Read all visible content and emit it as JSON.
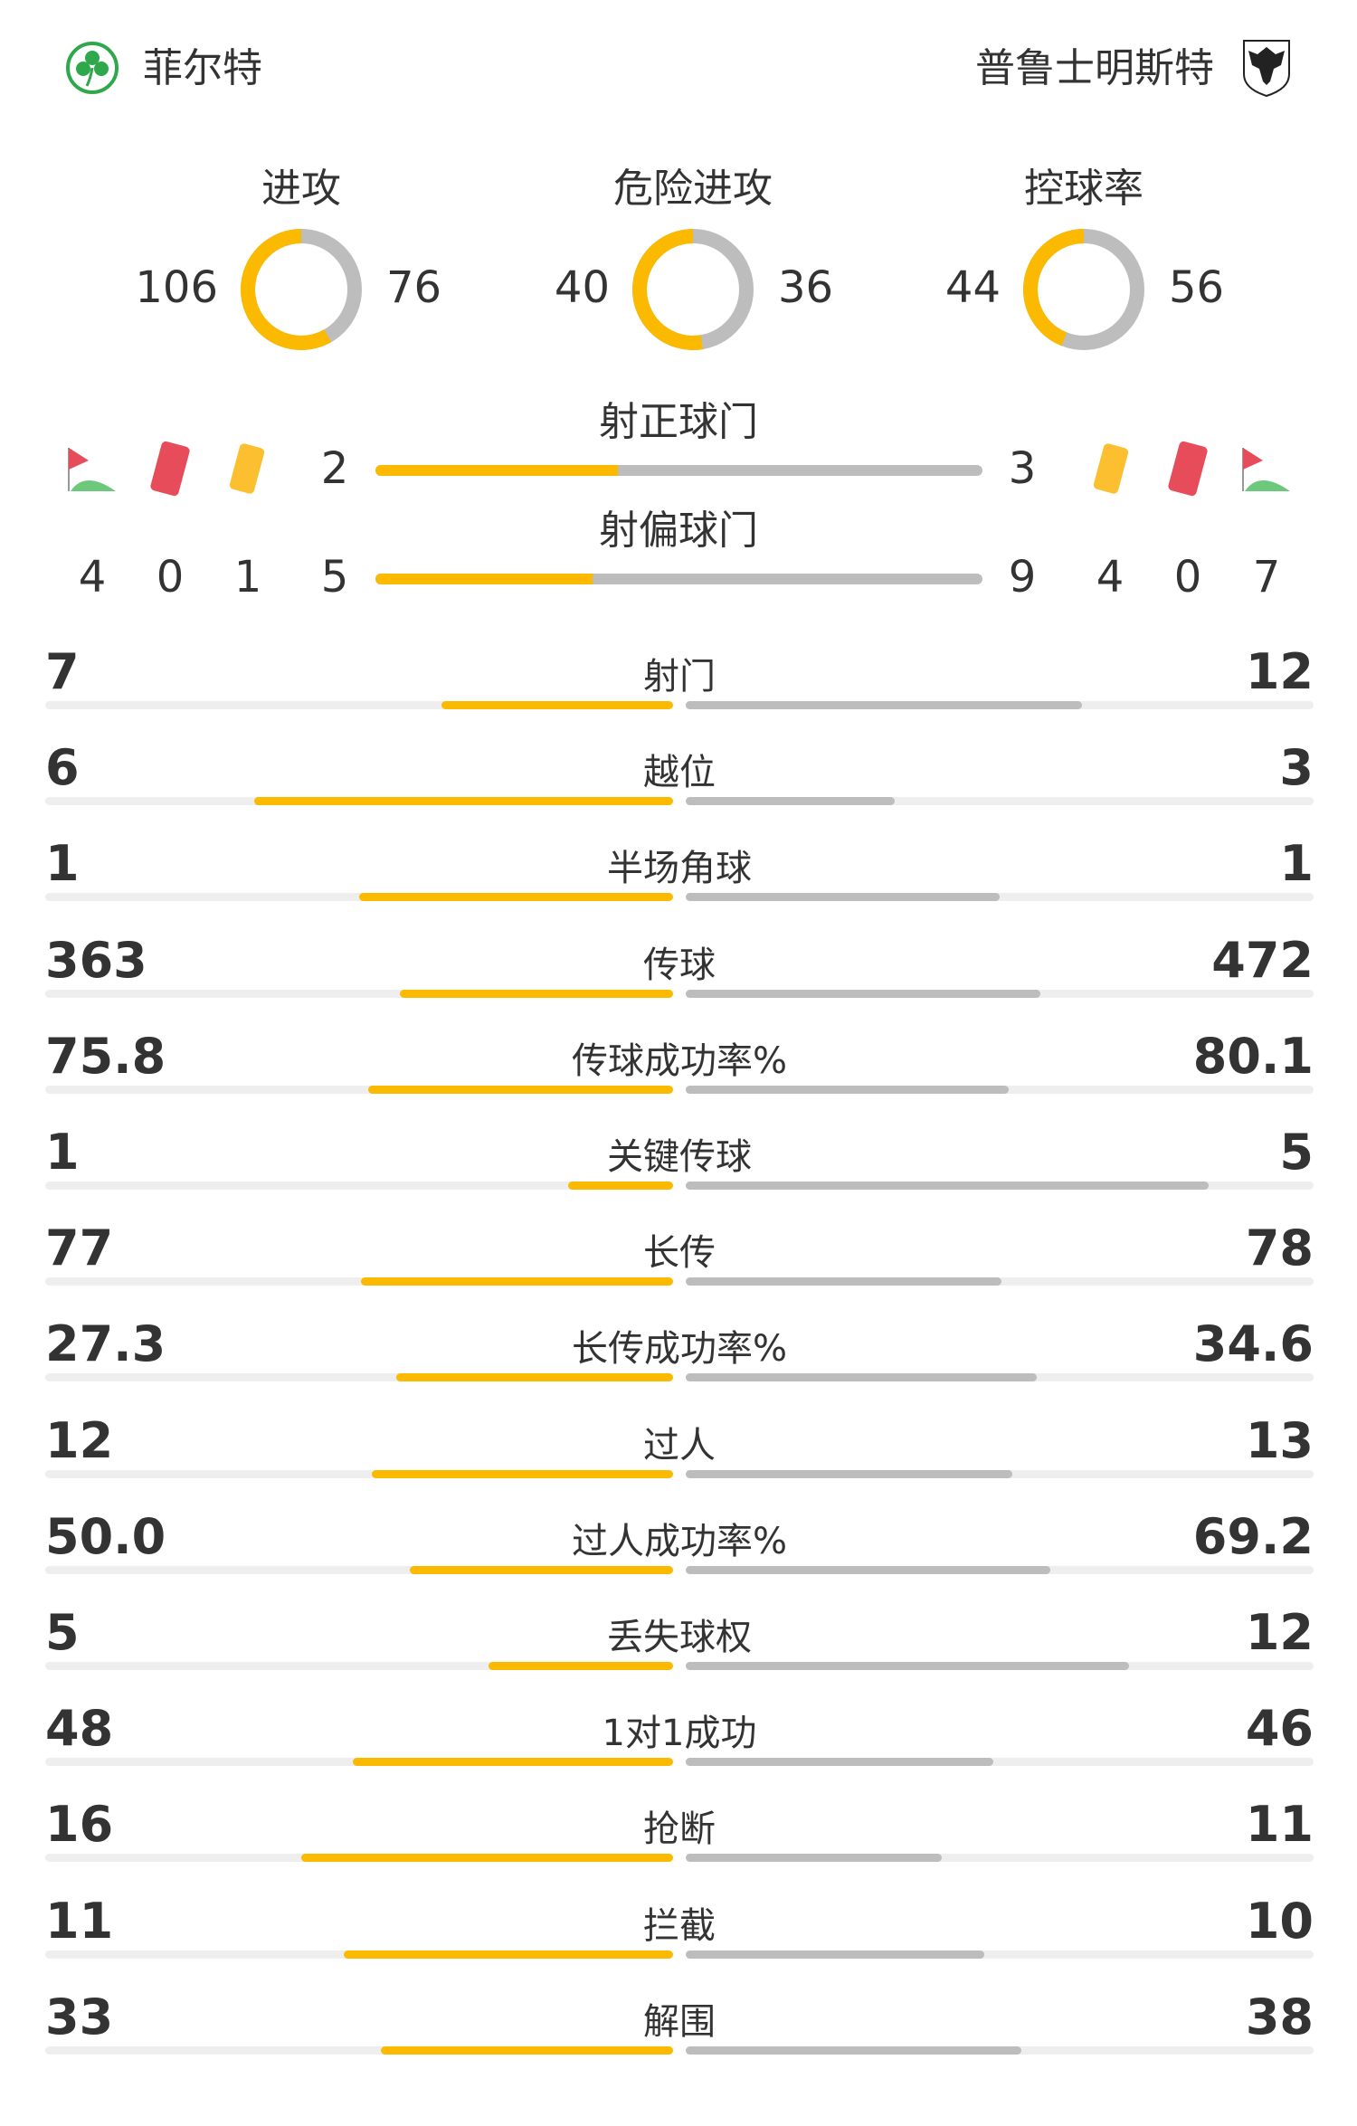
{
  "home": {
    "name": "菲尔特",
    "logo": "green-clover-crest"
  },
  "away": {
    "name": "普鲁士明斯特",
    "logo": "black-eagle-shield-crest"
  },
  "colors": {
    "home": "#fbb900",
    "away": "#bdbdbd",
    "track": "#eeeeee"
  },
  "donuts": [
    {
      "label": "进攻",
      "home": 106,
      "away": 76
    },
    {
      "label": "危险进攻",
      "home": 40,
      "away": 36
    },
    {
      "label": "控球率",
      "home": 44,
      "away": 56
    }
  ],
  "on_target": {
    "label": "射正球门",
    "home": 2,
    "away": 3
  },
  "off_target": {
    "label": "射偏球门",
    "home": 5,
    "away": 9
  },
  "home_counts": {
    "corners": 4,
    "red_cards": 0,
    "yellow_cards": 1
  },
  "away_counts": {
    "corners": 7,
    "red_cards": 0,
    "yellow_cards": 4
  },
  "stats": [
    {
      "label": "射门",
      "home": "7",
      "away": "12"
    },
    {
      "label": "越位",
      "home": "6",
      "away": "3"
    },
    {
      "label": "半场角球",
      "home": "1",
      "away": "1"
    },
    {
      "label": "传球",
      "home": "363",
      "away": "472"
    },
    {
      "label": "传球成功率%",
      "home": "75.8",
      "away": "80.1"
    },
    {
      "label": "关键传球",
      "home": "1",
      "away": "5"
    },
    {
      "label": "长传",
      "home": "77",
      "away": "78"
    },
    {
      "label": "长传成功率%",
      "home": "27.3",
      "away": "34.6"
    },
    {
      "label": "过人",
      "home": "12",
      "away": "13"
    },
    {
      "label": "过人成功率%",
      "home": "50.0",
      "away": "69.2"
    },
    {
      "label": "丢失球权",
      "home": "5",
      "away": "12"
    },
    {
      "label": "1对1成功",
      "home": "48",
      "away": "46"
    },
    {
      "label": "抢断",
      "home": "16",
      "away": "11"
    },
    {
      "label": "拦截",
      "home": "11",
      "away": "10"
    },
    {
      "label": "解围",
      "home": "33",
      "away": "38"
    }
  ]
}
